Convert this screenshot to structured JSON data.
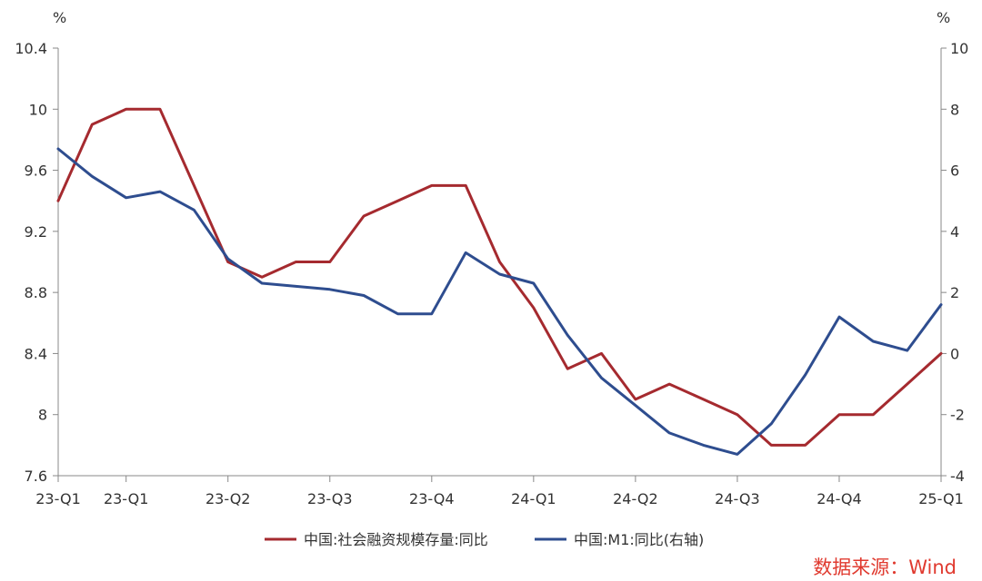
{
  "chart_data": {
    "type": "line",
    "x_labels": [
      "23-Q1",
      "23-Q1",
      "23-Q2",
      "23-Q3",
      "23-Q4",
      "24-Q1",
      "24-Q2",
      "24-Q3",
      "24-Q4",
      "25-Q1"
    ],
    "left_axis": {
      "unit": "%",
      "range": [
        7.6,
        10.4
      ],
      "ticks": [
        "7.6",
        "8",
        "8.4",
        "8.8",
        "9.2",
        "9.6",
        "10",
        "10.4"
      ]
    },
    "right_axis": {
      "unit": "%",
      "range": [
        -4,
        10
      ],
      "ticks": [
        "-4",
        "-2",
        "0",
        "2",
        "4",
        "6",
        "8",
        "10"
      ]
    },
    "series": [
      {
        "name": "中国:社会融资规模存量:同比",
        "axis": "left",
        "color": "#a52a2f",
        "values": [
          9.4,
          9.9,
          10.0,
          10.0,
          9.5,
          9.0,
          8.9,
          9.0,
          9.0,
          9.3,
          9.4,
          9.5,
          9.5,
          9.0,
          8.7,
          8.3,
          8.4,
          8.1,
          8.2,
          8.1,
          8.0,
          7.8,
          7.8,
          8.0,
          8.0,
          8.2,
          8.4
        ]
      },
      {
        "name": "中国:M1:同比(右轴)",
        "axis": "right",
        "color": "#2e4d8f",
        "values": [
          6.7,
          5.8,
          5.1,
          5.3,
          4.7,
          3.1,
          2.3,
          2.2,
          2.1,
          1.9,
          1.3,
          1.3,
          3.3,
          2.6,
          2.3,
          0.6,
          -0.8,
          -1.7,
          -2.6,
          -3.0,
          -3.3,
          -2.3,
          -0.7,
          1.2,
          0.4,
          0.1,
          1.6
        ]
      }
    ],
    "legend_position": "bottom",
    "grid": false
  },
  "source": "数据来源：Wind"
}
